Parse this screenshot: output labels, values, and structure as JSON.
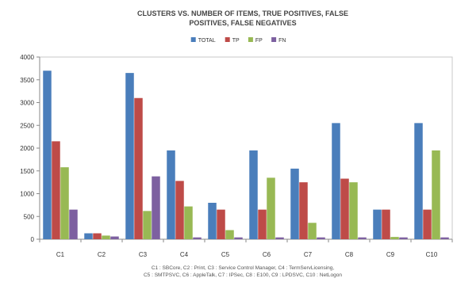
{
  "chart_data": {
    "type": "bar",
    "title_lines": [
      "CLUSTERS VS. NUMBER OF ITEMS, TRUE POSITIVES, FALSE",
      "POSITIVES, FALSE NEGATIVES"
    ],
    "categories": [
      "C1",
      "C2",
      "C3",
      "C4",
      "C5",
      "C6",
      "C7",
      "C8",
      "C9",
      "C10"
    ],
    "series": [
      {
        "name": "TOTAL",
        "color": "#4a7ebb",
        "values": [
          3700,
          130,
          3650,
          1950,
          800,
          1950,
          1550,
          2550,
          650,
          2550
        ]
      },
      {
        "name": "TP",
        "color": "#be4b48",
        "values": [
          2150,
          130,
          3100,
          1280,
          650,
          650,
          1250,
          1330,
          650,
          650
        ]
      },
      {
        "name": "FP",
        "color": "#98b954",
        "values": [
          1580,
          80,
          620,
          720,
          200,
          1350,
          360,
          1250,
          50,
          1950
        ]
      },
      {
        "name": "FN",
        "color": "#7d60a0",
        "values": [
          650,
          60,
          1380,
          40,
          40,
          40,
          40,
          40,
          40,
          40
        ]
      }
    ],
    "ylim": [
      0,
      4000
    ],
    "yticks": [
      "0",
      "500",
      "1000",
      "1500",
      "2000",
      "2500",
      "3000",
      "3500",
      "4000"
    ],
    "legend_position": "top-center",
    "grid": false,
    "footnote_lines": [
      "C1 : SBCore, C2 : Print, C3 : Service Control Manager, C4 : TermServLicensing,",
      "C5 : SMTPSVC, C6 : AppleTalk, C7 : IPSec, C8 : E100, C9 : LPDSVC, C10 : NetLogon"
    ]
  }
}
